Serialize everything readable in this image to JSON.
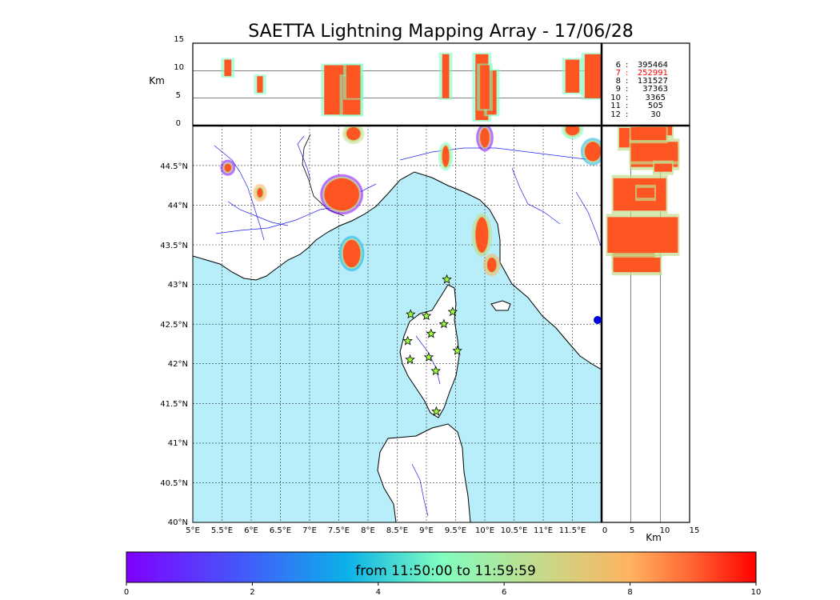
{
  "chart_data": {
    "type": "scatter",
    "title": "SAETTA Lightning Mapping Array - 17/06/28",
    "time_range_label": "from 11:50:00 to 11:59:59",
    "map": {
      "x_ticks": [
        "5°E",
        "5.5°E",
        "6°E",
        "6.5°E",
        "7°E",
        "7.5°E",
        "8°E",
        "8.5°E",
        "9°E",
        "9.5°E",
        "10°E",
        "10.5°E",
        "11°E",
        "11.5°E"
      ],
      "y_ticks": [
        "40°N",
        "40.5°N",
        "41°N",
        "41.5°N",
        "42°N",
        "42.5°N",
        "43°N",
        "43.5°N",
        "44°N",
        "44.5°N"
      ],
      "xlim": [
        5,
        12
      ],
      "ylim": [
        40,
        44.9
      ],
      "sea_color": "#b8eefa",
      "land_color": "#ffffff"
    },
    "altitude_panel": {
      "ylabel": "Km",
      "yticks": [
        "0",
        "5",
        "10",
        "15"
      ],
      "ylim": [
        0,
        15
      ]
    },
    "side_panel": {
      "xlabel": "Km",
      "xticks": [
        "0",
        "5",
        "10",
        "15"
      ],
      "xlim": [
        0,
        15
      ]
    },
    "station_counts": [
      {
        "stations": "6",
        "count": "395464",
        "color": "#000000"
      },
      {
        "stations": "7",
        "count": "252991",
        "color": "#ff0000"
      },
      {
        "stations": "8",
        "count": "131527",
        "color": "#000000"
      },
      {
        "stations": "9",
        "count": "37363",
        "color": "#000000"
      },
      {
        "stations": "10",
        "count": "3365",
        "color": "#000000"
      },
      {
        "stations": "11",
        "count": "505",
        "color": "#000000"
      },
      {
        "stations": "12",
        "count": "30",
        "color": "#000000"
      }
    ],
    "stations": [
      {
        "lon": 9.35,
        "lat": 43.0
      },
      {
        "lon": 8.73,
        "lat": 42.57
      },
      {
        "lon": 9.0,
        "lat": 42.55
      },
      {
        "lon": 9.45,
        "lat": 42.6
      },
      {
        "lon": 9.3,
        "lat": 42.45
      },
      {
        "lon": 9.08,
        "lat": 42.33
      },
      {
        "lon": 8.68,
        "lat": 42.24
      },
      {
        "lon": 9.53,
        "lat": 42.12
      },
      {
        "lon": 8.72,
        "lat": 42.01
      },
      {
        "lon": 9.04,
        "lat": 42.04
      },
      {
        "lon": 9.16,
        "lat": 41.87
      },
      {
        "lon": 9.17,
        "lat": 41.37
      }
    ],
    "storm_cells": [
      {
        "lon": 7.55,
        "lat": 44.05,
        "rlon": 0.3,
        "rlat": 0.2,
        "zmin": 2,
        "zmax": 11
      },
      {
        "lon": 7.72,
        "lat": 43.32,
        "rlon": 0.15,
        "rlat": 0.17,
        "zmin": 2,
        "zmax": 9
      },
      {
        "lon": 9.33,
        "lat": 44.52,
        "rlon": 0.06,
        "rlat": 0.13,
        "zmin": 5,
        "zmax": 13
      },
      {
        "lon": 9.95,
        "lat": 43.55,
        "rlon": 0.11,
        "rlat": 0.22,
        "zmin": 1,
        "zmax": 13
      },
      {
        "lon": 10.12,
        "lat": 43.18,
        "rlon": 0.08,
        "rlat": 0.09,
        "zmin": 2,
        "zmax": 10
      },
      {
        "lon": 10.0,
        "lat": 44.75,
        "rlon": 0.08,
        "rlat": 0.12,
        "zmin": 3,
        "zmax": 11
      },
      {
        "lon": 11.85,
        "lat": 44.58,
        "rlon": 0.14,
        "rlat": 0.12,
        "zmin": 5,
        "zmax": 13
      },
      {
        "lon": 11.5,
        "lat": 44.85,
        "rlon": 0.12,
        "rlat": 0.07,
        "zmin": 6,
        "zmax": 12
      },
      {
        "lon": 7.75,
        "lat": 44.8,
        "rlon": 0.12,
        "rlat": 0.08,
        "zmin": 5,
        "zmax": 11
      },
      {
        "lon": 6.15,
        "lat": 44.07,
        "rlon": 0.05,
        "rlat": 0.06,
        "zmin": 6,
        "zmax": 9
      },
      {
        "lon": 5.6,
        "lat": 44.38,
        "rlon": 0.06,
        "rlat": 0.05,
        "zmin": 9,
        "zmax": 12
      }
    ],
    "colorbar": {
      "ticks": [
        "0",
        "2",
        "4",
        "6",
        "8",
        "10"
      ],
      "range": [
        0,
        10
      ],
      "colormap": "rainbow"
    }
  }
}
